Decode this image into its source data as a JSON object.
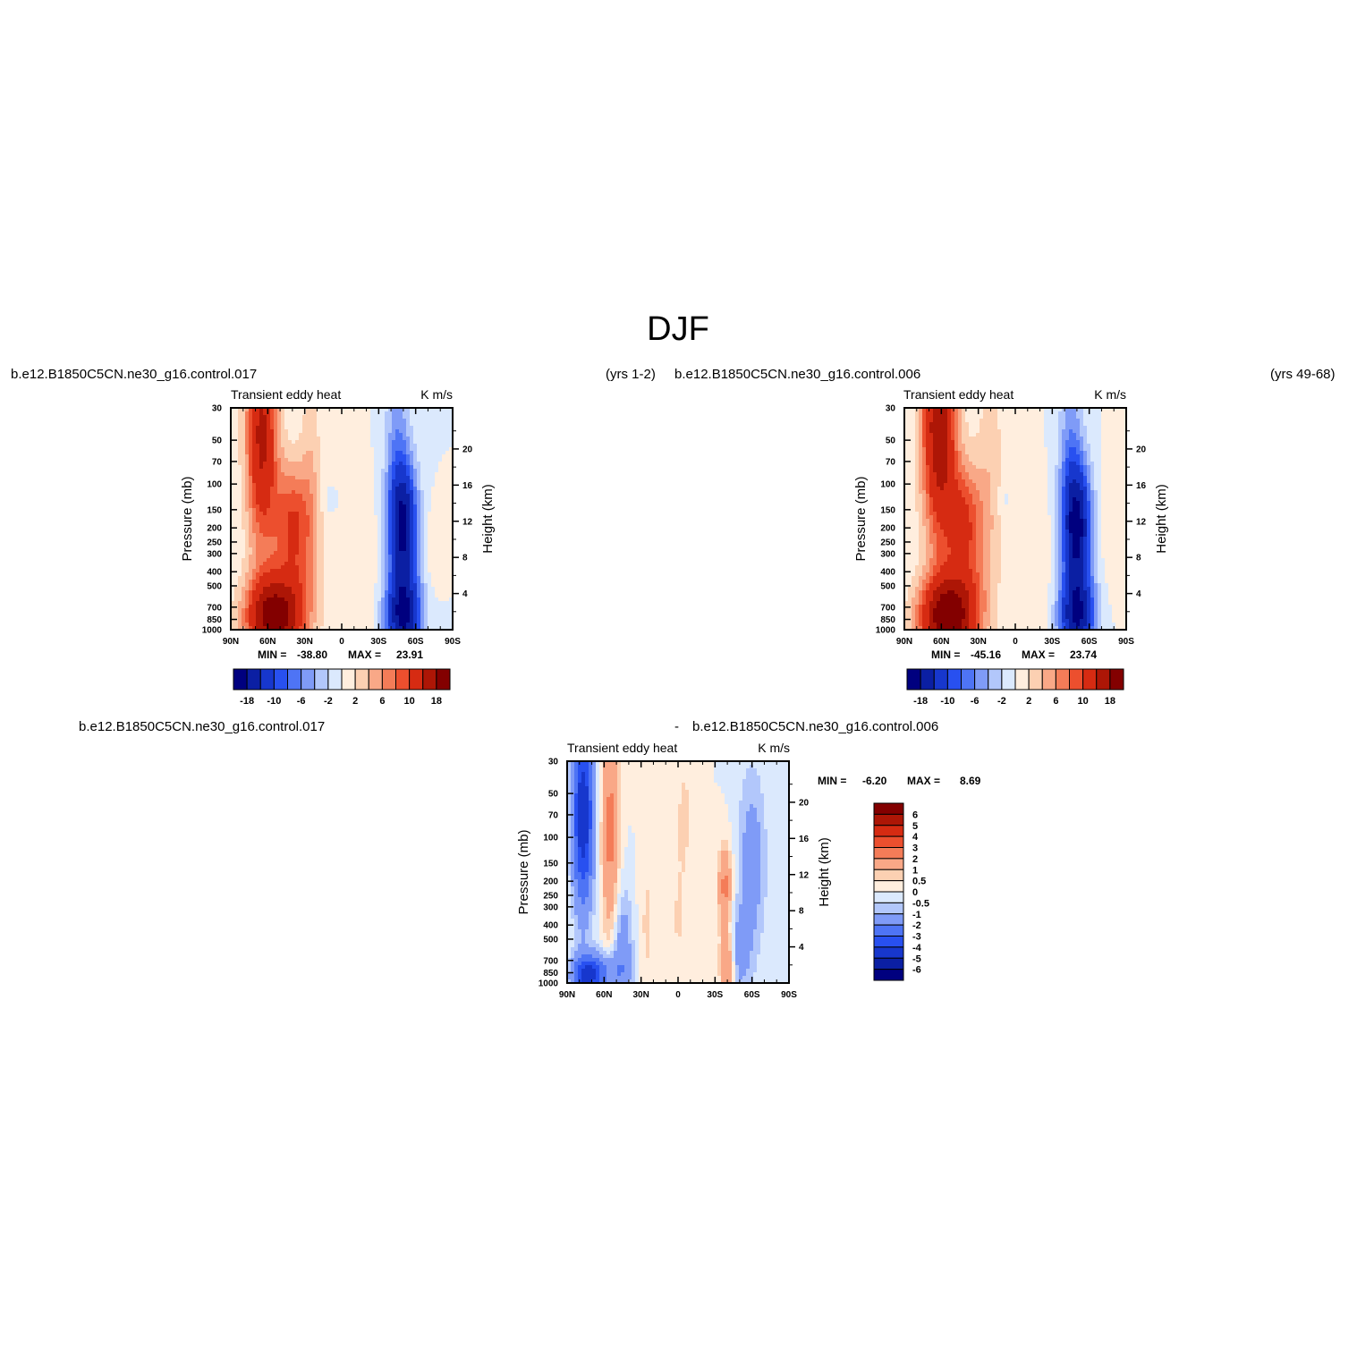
{
  "figure": {
    "season_title": "DJF",
    "case_a": "b.e12.B1850C5CN.ne30_g16.control.017",
    "case_a_years": "(yrs 1-2)",
    "case_b": "b.e12.B1850C5CN.ne30_g16.control.006",
    "case_b_years": "(yrs 49-68)",
    "diff_prefix": "-",
    "variable": "Transient eddy heat",
    "units": "K m/s",
    "y_left_label": "Pressure (mb)",
    "y_right_label": "Height (km)",
    "min_label": "MIN =",
    "max_label": "MAX ="
  },
  "colors": {
    "diverging": [
      "#00007f",
      "#0b1fa3",
      "#1737cd",
      "#2850f0",
      "#4e74f5",
      "#7f9bf7",
      "#b2c7fb",
      "#dbe9fd",
      "#ffeede",
      "#fcd0b2",
      "#f9a887",
      "#f47c58",
      "#ec4f2e",
      "#d62b12",
      "#ad1606",
      "#830000"
    ]
  },
  "chart_data": [
    {
      "type": "contour",
      "panel": "case_a",
      "title": "Transient eddy heat",
      "units": "K m/s",
      "x_ticks": [
        "90N",
        "60N",
        "30N",
        "0",
        "30S",
        "60S",
        "90S"
      ],
      "x_tick_values": [
        90,
        60,
        30,
        0,
        -30,
        -60,
        -90
      ],
      "y_ticks": [
        "30",
        "50",
        "70",
        "100",
        "150",
        "200",
        "250",
        "300",
        "400",
        "500",
        "700",
        "850",
        "1000"
      ],
      "y_tick_values": [
        30,
        50,
        70,
        100,
        150,
        200,
        250,
        300,
        400,
        500,
        700,
        850,
        1000
      ],
      "y_right_ticks": [
        "4",
        "8",
        "12",
        "16",
        "20"
      ],
      "y_right_tick_values": [
        4,
        8,
        12,
        16,
        20
      ],
      "ylim": [
        1000,
        30
      ],
      "yscale": "log",
      "min": "-38.80",
      "max": "23.91",
      "colorbar_labels": [
        "-18",
        "-10",
        "-6",
        "-2",
        "2",
        "6",
        "10",
        "18"
      ],
      "features": [
        {
          "lat": 65,
          "p": 45,
          "dlat": 9,
          "dlogp": 0.55,
          "amp": 15
        },
        {
          "lat": 40,
          "p": 170,
          "dlat": 11,
          "dlogp": 0.28,
          "amp": 8
        },
        {
          "lat": 55,
          "p": 820,
          "dlat": 16,
          "dlogp": 0.2,
          "amp": 20
        },
        {
          "lat": 35,
          "p": 400,
          "dlat": 14,
          "dlogp": 0.35,
          "amp": 4
        },
        {
          "lat": 25,
          "p": 60,
          "dlat": 6,
          "dlogp": 0.5,
          "amp": 3
        },
        {
          "lat": -50,
          "p": 200,
          "dlat": 8,
          "dlogp": 0.3,
          "amp": -18
        },
        {
          "lat": -50,
          "p": 820,
          "dlat": 10,
          "dlogp": 0.2,
          "amp": -18
        },
        {
          "lat": -45,
          "p": 60,
          "dlat": 7,
          "dlogp": 0.45,
          "amp": -5
        },
        {
          "lat": -75,
          "p": 280,
          "dlat": 5,
          "dlogp": 0.18,
          "amp": 2
        },
        {
          "lat": 10,
          "p": 130,
          "dlat": 4,
          "dlogp": 0.06,
          "amp": -1.5
        },
        {
          "lat": -15,
          "p": 450,
          "dlat": 10,
          "dlogp": 0.4,
          "amp": 2
        }
      ]
    },
    {
      "type": "contour",
      "panel": "case_b",
      "title": "Transient eddy heat",
      "units": "K m/s",
      "x_ticks": [
        "90N",
        "60N",
        "30N",
        "0",
        "30S",
        "60S",
        "90S"
      ],
      "x_tick_values": [
        90,
        60,
        30,
        0,
        -30,
        -60,
        -90
      ],
      "y_ticks": [
        "30",
        "50",
        "70",
        "100",
        "150",
        "200",
        "250",
        "300",
        "400",
        "500",
        "700",
        "850",
        "1000"
      ],
      "y_tick_values": [
        30,
        50,
        70,
        100,
        150,
        200,
        250,
        300,
        400,
        500,
        700,
        850,
        1000
      ],
      "y_right_ticks": [
        "4",
        "8",
        "12",
        "16",
        "20"
      ],
      "y_right_tick_values": [
        4,
        8,
        12,
        16,
        20
      ],
      "ylim": [
        1000,
        30
      ],
      "yscale": "log",
      "min": "-45.16",
      "max": "23.74",
      "colorbar_labels": [
        "-18",
        "-10",
        "-6",
        "-2",
        "2",
        "6",
        "10",
        "18"
      ],
      "features": [
        {
          "lat": 62,
          "p": 40,
          "dlat": 10,
          "dlogp": 0.55,
          "amp": 17
        },
        {
          "lat": 42,
          "p": 170,
          "dlat": 11,
          "dlogp": 0.28,
          "amp": 8
        },
        {
          "lat": 55,
          "p": 820,
          "dlat": 16,
          "dlogp": 0.2,
          "amp": 21
        },
        {
          "lat": 35,
          "p": 400,
          "dlat": 14,
          "dlogp": 0.35,
          "amp": 4
        },
        {
          "lat": 20,
          "p": 60,
          "dlat": 8,
          "dlogp": 0.5,
          "amp": 3
        },
        {
          "lat": -50,
          "p": 200,
          "dlat": 8,
          "dlogp": 0.3,
          "amp": -19
        },
        {
          "lat": -50,
          "p": 820,
          "dlat": 10,
          "dlogp": 0.2,
          "amp": -17
        },
        {
          "lat": -45,
          "p": 60,
          "dlat": 7,
          "dlogp": 0.45,
          "amp": -5
        },
        {
          "lat": -80,
          "p": 200,
          "dlat": 7,
          "dlogp": 0.3,
          "amp": 2
        },
        {
          "lat": 10,
          "p": 130,
          "dlat": 4,
          "dlogp": 0.06,
          "amp": -1.5
        },
        {
          "lat": -15,
          "p": 450,
          "dlat": 10,
          "dlogp": 0.4,
          "amp": 2
        }
      ]
    },
    {
      "type": "contour",
      "panel": "difference",
      "title": "Transient eddy heat",
      "units": "K m/s",
      "x_ticks": [
        "90N",
        "60N",
        "30N",
        "0",
        "30S",
        "60S",
        "90S"
      ],
      "x_tick_values": [
        90,
        60,
        30,
        0,
        -30,
        -60,
        -90
      ],
      "y_ticks": [
        "30",
        "50",
        "70",
        "100",
        "150",
        "200",
        "250",
        "300",
        "400",
        "500",
        "700",
        "850",
        "1000"
      ],
      "y_tick_values": [
        30,
        50,
        70,
        100,
        150,
        200,
        250,
        300,
        400,
        500,
        700,
        850,
        1000
      ],
      "y_right_ticks": [
        "4",
        "8",
        "12",
        "16",
        "20"
      ],
      "y_right_tick_values": [
        4,
        8,
        12,
        16,
        20
      ],
      "ylim": [
        1000,
        30
      ],
      "yscale": "log",
      "min": "-6.20",
      "max": "8.69",
      "colorbar_labels": [
        "6",
        "5",
        "4",
        "3",
        "2",
        "1",
        "0.5",
        "0",
        "-0.5",
        "-1",
        "-2",
        "-3",
        "-4",
        "-5",
        "-6"
      ],
      "features": [
        {
          "lat": 77,
          "p": 70,
          "dlat": 6,
          "dlogp": 0.45,
          "amp": -5
        },
        {
          "lat": 75,
          "p": 900,
          "dlat": 8,
          "dlogp": 0.1,
          "amp": -4
        },
        {
          "lat": 55,
          "p": 90,
          "dlat": 5,
          "dlogp": 0.55,
          "amp": 2.3
        },
        {
          "lat": 45,
          "p": 600,
          "dlat": 6,
          "dlogp": 0.3,
          "amp": -1.6
        },
        {
          "lat": 60,
          "p": 850,
          "dlat": 10,
          "dlogp": 0.1,
          "amp": -2
        },
        {
          "lat": 25,
          "p": 400,
          "dlat": 5,
          "dlogp": 0.4,
          "amp": 0.6
        },
        {
          "lat": -38,
          "p": 220,
          "dlat": 4,
          "dlogp": 0.2,
          "amp": 2.3
        },
        {
          "lat": -40,
          "p": 750,
          "dlat": 4,
          "dlogp": 0.15,
          "amp": 2.2
        },
        {
          "lat": -60,
          "p": 150,
          "dlat": 8,
          "dlogp": 0.45,
          "amp": -1.5
        },
        {
          "lat": -50,
          "p": 600,
          "dlat": 6,
          "dlogp": 0.2,
          "amp": -1.4
        },
        {
          "lat": -5,
          "p": 70,
          "dlat": 6,
          "dlogp": 0.35,
          "amp": 0.6
        },
        {
          "lat": 0,
          "p": 400,
          "dlat": 6,
          "dlogp": 0.3,
          "amp": 0.5
        }
      ]
    }
  ]
}
